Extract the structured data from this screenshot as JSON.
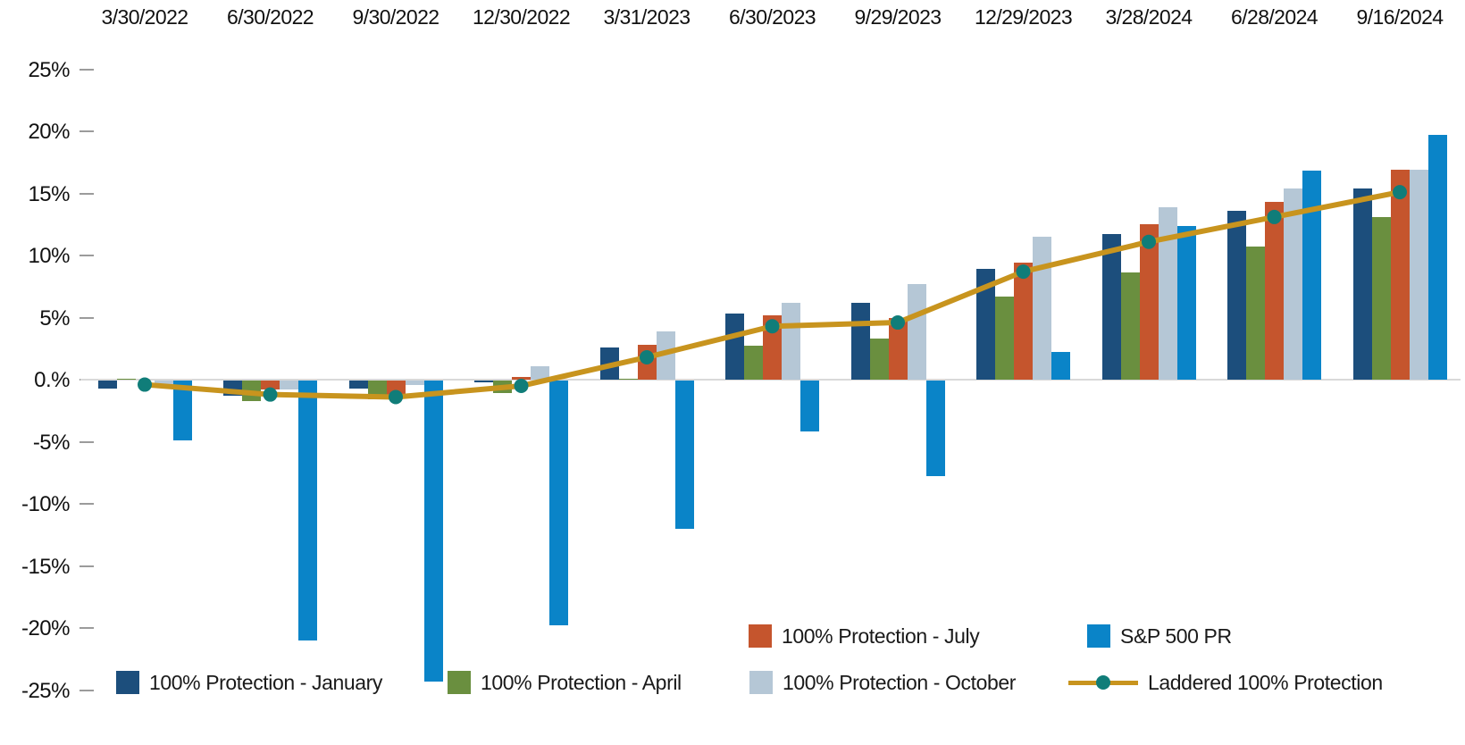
{
  "chart_data": {
    "type": "bar",
    "title": "",
    "x_axis": {
      "position": "top",
      "categories": [
        "3/30/2022",
        "6/30/2022",
        "9/30/2022",
        "12/30/2022",
        "3/31/2023",
        "6/30/2023",
        "9/29/2023",
        "12/29/2023",
        "3/28/2024",
        "6/28/2024",
        "9/16/2024"
      ]
    },
    "y_axis": {
      "unit": "%",
      "min": -25,
      "max": 25,
      "tick_values": [
        25,
        20,
        15,
        10,
        5,
        0,
        -5,
        -10,
        -15,
        -20,
        -25
      ],
      "tick_labels": [
        "25%",
        "20%",
        "15%",
        "10%",
        "5%",
        "0.%",
        "-5%",
        "-10%",
        "-15%",
        "-20%",
        "-25%"
      ]
    },
    "axis_colors": {
      "line": "#d9d9d9",
      "tick": "#9b9b9b",
      "label": "#111111"
    },
    "series": [
      {
        "name": "100% Protection - January",
        "type": "bar",
        "color": "#1C4E7C",
        "values": [
          -0.7,
          -1.3,
          -0.7,
          -0.2,
          2.6,
          5.3,
          6.2,
          8.9,
          11.7,
          13.6,
          15.4
        ]
      },
      {
        "name": "100% Protection - April",
        "type": "bar",
        "color": "#6A8F3F",
        "values": [
          0.1,
          -1.7,
          -1.6,
          -1.1,
          0.1,
          2.7,
          3.3,
          6.7,
          8.6,
          10.7,
          13.1
        ]
      },
      {
        "name": "100% Protection - July",
        "type": "bar",
        "color": "#C5552D",
        "values": [
          0.0,
          -0.8,
          -1.2,
          0.2,
          2.8,
          5.2,
          5.0,
          9.4,
          12.5,
          14.3,
          16.9
        ]
      },
      {
        "name": "100% Protection - October",
        "type": "bar",
        "color": "#B5C7D6",
        "values": [
          -0.5,
          -0.8,
          -0.4,
          1.1,
          3.9,
          6.2,
          7.7,
          11.5,
          13.9,
          15.4,
          16.9
        ]
      },
      {
        "name": "S&P 500 PR",
        "type": "bar",
        "color": "#0A84C8",
        "values": [
          -4.9,
          -21.0,
          -24.3,
          -19.8,
          -12.0,
          -4.2,
          -7.8,
          2.2,
          12.4,
          16.8,
          19.7
        ]
      },
      {
        "name": "Laddered 100% Protection",
        "type": "line",
        "color": "#C8941E",
        "marker_color": "#107D79",
        "values": [
          -0.4,
          -1.2,
          -1.4,
          -0.5,
          1.8,
          4.3,
          4.6,
          8.7,
          11.1,
          13.1,
          15.1
        ]
      }
    ],
    "legend": {
      "row1": [
        "100% Protection - July",
        "S&P 500 PR"
      ],
      "row2": [
        "100% Protection - January",
        "100% Protection - April",
        "100% Protection - October",
        "Laddered 100% Protection"
      ]
    }
  }
}
